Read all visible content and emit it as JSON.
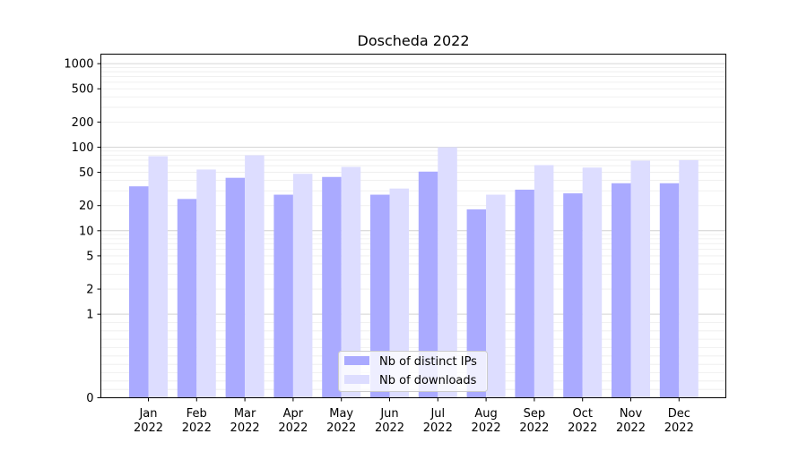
{
  "chart_data": {
    "type": "bar",
    "title": "Doscheda 2022",
    "xlabel": "",
    "ylabel": "",
    "yscale": "symlog",
    "ylim": [
      0,
      1300
    ],
    "categories": [
      [
        "Jan",
        "2022"
      ],
      [
        "Feb",
        "2022"
      ],
      [
        "Mar",
        "2022"
      ],
      [
        "Apr",
        "2022"
      ],
      [
        "May",
        "2022"
      ],
      [
        "Jun",
        "2022"
      ],
      [
        "Jul",
        "2022"
      ],
      [
        "Aug",
        "2022"
      ],
      [
        "Sep",
        "2022"
      ],
      [
        "Oct",
        "2022"
      ],
      [
        "Nov",
        "2022"
      ],
      [
        "Dec",
        "2022"
      ]
    ],
    "yticks": [
      0,
      1,
      2,
      5,
      10,
      20,
      50,
      100,
      200,
      500,
      1000
    ],
    "series": [
      {
        "name": "Nb of distinct IPs",
        "color": "#aaaaff",
        "values": [
          34,
          24,
          43,
          27,
          44,
          27,
          51,
          18,
          31,
          28,
          37,
          37
        ]
      },
      {
        "name": "Nb of downloads",
        "color": "#ddddff",
        "values": [
          78,
          54,
          80,
          48,
          58,
          32,
          100,
          27,
          61,
          57,
          69,
          70
        ]
      }
    ],
    "grid": true,
    "legend_position": "lower-center"
  }
}
